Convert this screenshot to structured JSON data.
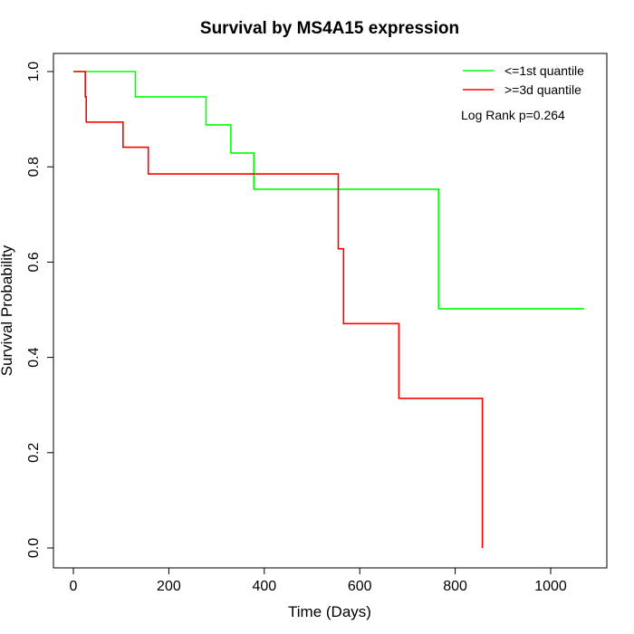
{
  "chart_data": {
    "type": "line",
    "step": true,
    "title": "Survival by MS4A15 expression",
    "xlabel": "Time (Days)",
    "ylabel": "Survival Probability",
    "xlim": [
      0,
      1070
    ],
    "ylim": [
      0,
      1
    ],
    "xticks": [
      0,
      200,
      400,
      600,
      800,
      1000
    ],
    "yticks": [
      0.0,
      0.2,
      0.4,
      0.6,
      0.8,
      1.0
    ],
    "xtick_labels": [
      "0",
      "200",
      "400",
      "600",
      "800",
      "1000"
    ],
    "ytick_labels": [
      "0.0",
      "0.2",
      "0.4",
      "0.6",
      "0.8",
      "1.0"
    ],
    "legend_position": "top-right",
    "annotation": "Log Rank p=0.264",
    "series": [
      {
        "name": "<=1st quantile",
        "color": "#00ff00",
        "x": [
          0,
          130,
          130,
          278,
          278,
          330,
          330,
          378,
          378,
          765,
          765,
          1070
        ],
        "y": [
          1.0,
          1.0,
          0.947,
          0.947,
          0.888,
          0.888,
          0.829,
          0.829,
          0.753,
          0.753,
          0.502,
          0.502
        ]
      },
      {
        "name": ">=3d quantile",
        "color": "#ff0000",
        "x": [
          0,
          25,
          25,
          27,
          27,
          104,
          104,
          157,
          157,
          555,
          555,
          566,
          566,
          682,
          682,
          857,
          857
        ],
        "y": [
          1.0,
          1.0,
          0.947,
          0.947,
          0.894,
          0.894,
          0.841,
          0.841,
          0.785,
          0.785,
          0.628,
          0.628,
          0.471,
          0.471,
          0.314,
          0.314,
          0.0
        ]
      }
    ]
  }
}
